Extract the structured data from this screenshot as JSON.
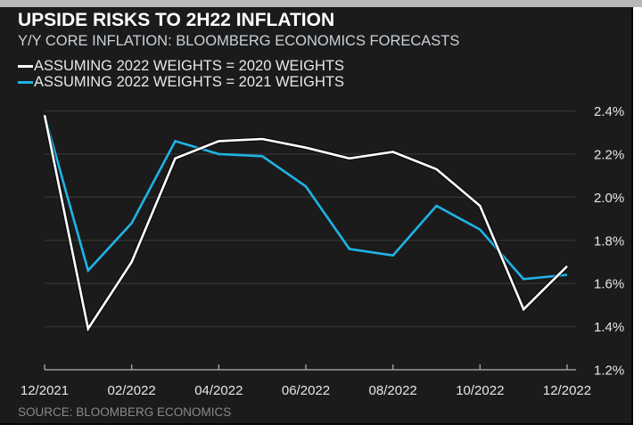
{
  "header": {
    "title": "UPSIDE RISKS TO 2H22 INFLATION",
    "subtitle": "Y/Y CORE INFLATION: BLOOMBERG ECONOMICS FORECASTS"
  },
  "legend": [
    {
      "label": "ASSUMING 2022 WEIGHTS = 2020 WEIGHTS",
      "color": "#ffffff"
    },
    {
      "label": "ASSUMING 2022 WEIGHTS = 2021 WEIGHTS",
      "color": "#1eb4e6"
    }
  ],
  "source": "SOURCE: BLOOMBERG ECONOMICS",
  "chart_data": {
    "type": "line",
    "title": "UPSIDE RISKS TO 2H22 INFLATION",
    "subtitle": "Y/Y CORE INFLATION: BLOOMBERG ECONOMICS FORECASTS",
    "xlabel": "",
    "ylabel": "",
    "x": [
      "12/2021",
      "01/2022",
      "02/2022",
      "03/2022",
      "04/2022",
      "05/2022",
      "06/2022",
      "07/2022",
      "08/2022",
      "09/2022",
      "10/2022",
      "11/2022",
      "12/2022"
    ],
    "xtick_labels": [
      "12/2021",
      "02/2022",
      "04/2022",
      "06/2022",
      "08/2022",
      "10/2022",
      "12/2022"
    ],
    "yticks": [
      1.2,
      1.4,
      1.6,
      1.8,
      2.0,
      2.2,
      2.4
    ],
    "ytick_labels": [
      "1.2%",
      "1.4%",
      "1.6%",
      "1.8%",
      "2.0%",
      "2.2%",
      "2.4%"
    ],
    "ylim": [
      1.2,
      2.4
    ],
    "y_axis_side": "right",
    "grid": "horizontal",
    "legend_position": "top-left",
    "series": [
      {
        "name": "ASSUMING 2022 WEIGHTS = 2020 WEIGHTS",
        "color": "#ffffff",
        "values": [
          2.38,
          1.39,
          1.7,
          2.18,
          2.26,
          2.27,
          2.23,
          2.18,
          2.21,
          2.13,
          1.96,
          1.48,
          1.68
        ]
      },
      {
        "name": "ASSUMING 2022 WEIGHTS = 2021 WEIGHTS",
        "color": "#1eb4e6",
        "values": [
          2.38,
          1.66,
          1.88,
          2.26,
          2.2,
          2.19,
          2.05,
          1.76,
          1.73,
          1.96,
          1.85,
          1.62,
          1.64
        ]
      }
    ],
    "source": "SOURCE: BLOOMBERG ECONOMICS"
  }
}
